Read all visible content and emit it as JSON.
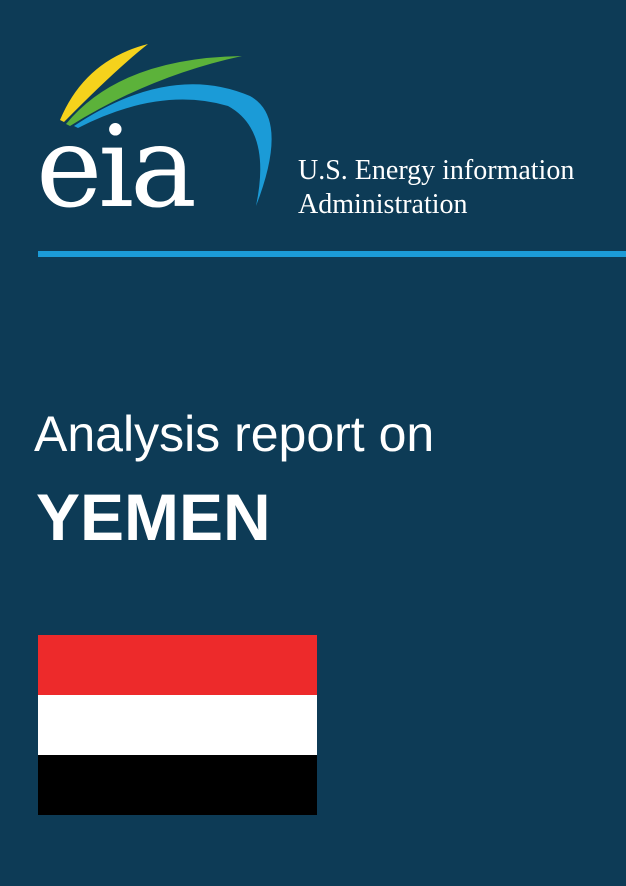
{
  "logo": {
    "text": "eia",
    "icon": "eia-logo-arcs",
    "arc_colors": [
      "#f5d21c",
      "#5cb23a",
      "#1b9bd7"
    ]
  },
  "agency": {
    "line1": "U.S. Energy information",
    "line2": "Administration"
  },
  "report": {
    "subtitle": "Analysis report on",
    "country": "YEMEN"
  },
  "flag": {
    "icon": "yemen-flag",
    "stripes": [
      "#ed2a2b",
      "#ffffff",
      "#000000"
    ]
  },
  "colors": {
    "background": "#0d3b56",
    "accent": "#1b9bd7",
    "text": "#ffffff"
  }
}
